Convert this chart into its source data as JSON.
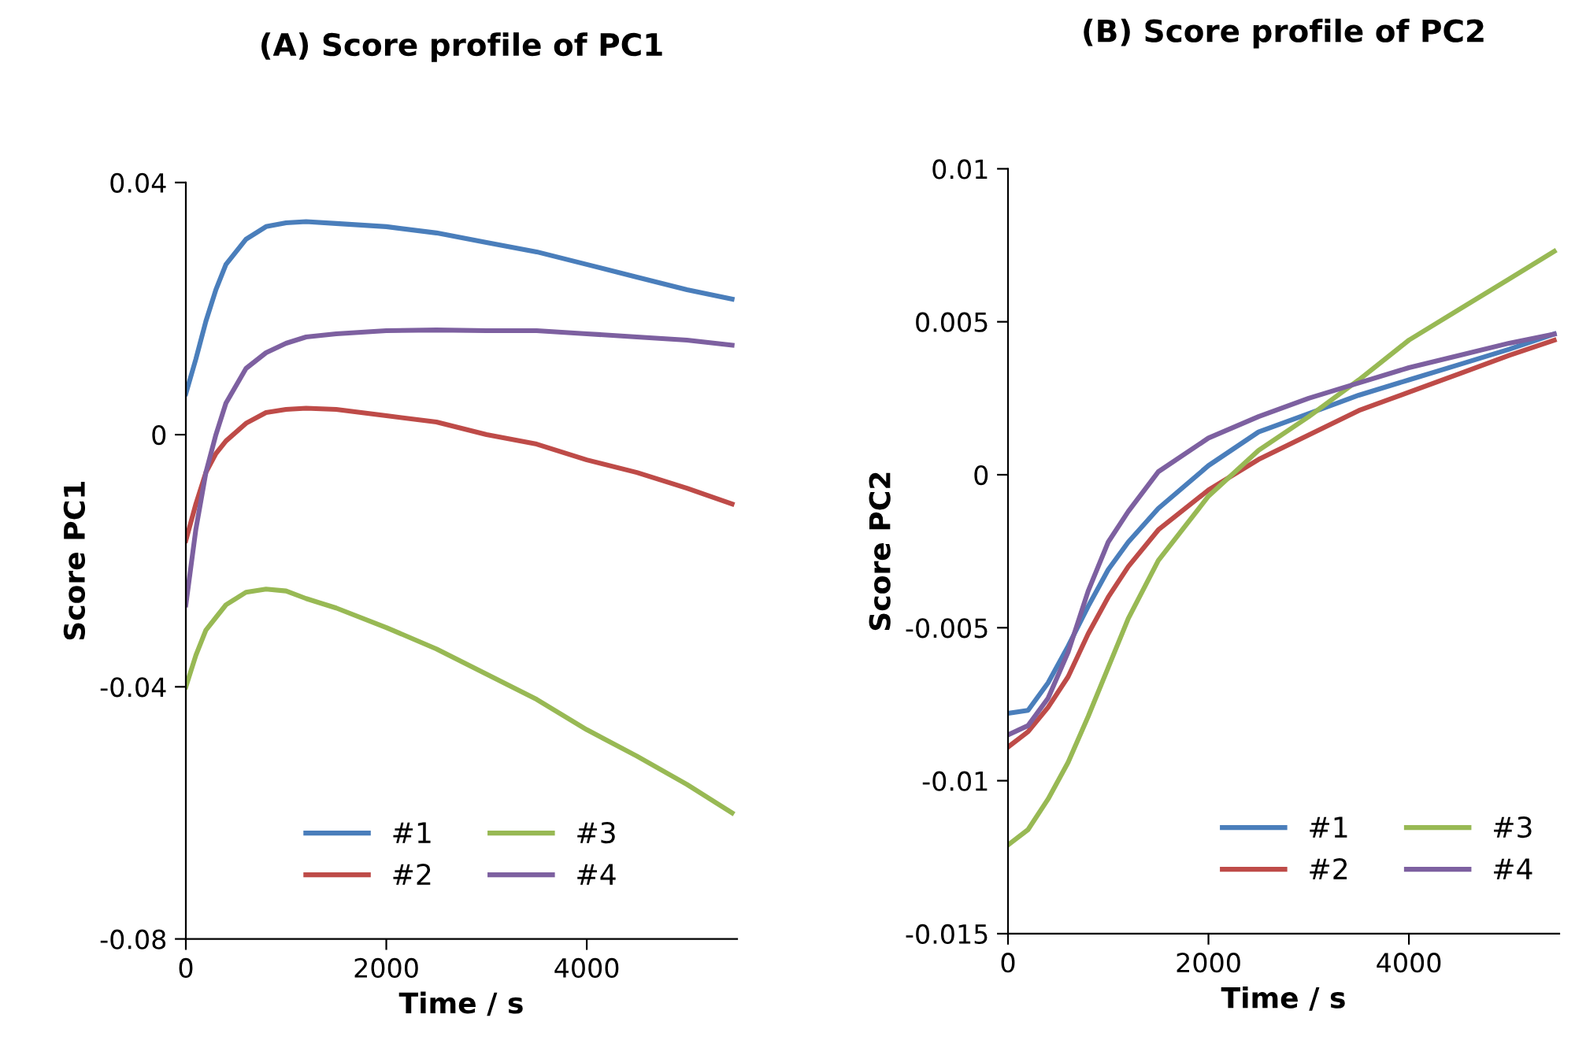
{
  "chart_data": [
    {
      "type": "line",
      "title": "(A) Score profile of PC1",
      "xlabel": "Time / s",
      "ylabel": "Score PC1",
      "x": [
        0,
        100,
        200,
        300,
        400,
        600,
        800,
        1000,
        1200,
        1500,
        2000,
        2500,
        3000,
        3500,
        4000,
        4500,
        5000,
        5450
      ],
      "xlim": [
        0,
        5500
      ],
      "xticks": [
        0,
        2000,
        4000
      ],
      "ylim": [
        -0.08,
        0.04
      ],
      "yticks": [
        -0.08,
        -0.04,
        0,
        0.04
      ],
      "grid": false,
      "legend": "bottom",
      "marker": "none",
      "line_style": "solid",
      "series": [
        {
          "name": "#1",
          "color": "#4a7ebb",
          "values": [
            0.0065,
            0.012,
            0.018,
            0.023,
            0.027,
            0.031,
            0.033,
            0.0336,
            0.0338,
            0.0335,
            0.033,
            0.032,
            0.0305,
            0.029,
            0.027,
            0.025,
            0.023,
            0.0215
          ]
        },
        {
          "name": "#2",
          "color": "#be4b48",
          "values": [
            -0.0168,
            -0.011,
            -0.006,
            -0.003,
            -0.001,
            0.0018,
            0.0035,
            0.004,
            0.0042,
            0.004,
            0.003,
            0.002,
            0.0,
            -0.0015,
            -0.004,
            -0.006,
            -0.0085,
            -0.011
          ]
        },
        {
          "name": "#3",
          "color": "#98b954",
          "values": [
            -0.04,
            -0.035,
            -0.031,
            -0.029,
            -0.027,
            -0.025,
            -0.0245,
            -0.0248,
            -0.026,
            -0.0275,
            -0.0306,
            -0.034,
            -0.038,
            -0.042,
            -0.0468,
            -0.051,
            -0.0555,
            -0.06
          ]
        },
        {
          "name": "#4",
          "color": "#7d60a0",
          "values": [
            -0.027,
            -0.015,
            -0.006,
            0.0,
            0.005,
            0.0105,
            0.013,
            0.0145,
            0.0155,
            0.016,
            0.0165,
            0.0166,
            0.0165,
            0.0165,
            0.016,
            0.0155,
            0.015,
            0.0142
          ]
        }
      ]
    },
    {
      "type": "line",
      "title": "(B) Score profile of PC2",
      "xlabel": "Time / s",
      "ylabel": "Score PC2",
      "x": [
        0,
        200,
        400,
        600,
        800,
        1000,
        1200,
        1500,
        2000,
        2500,
        3000,
        3500,
        4000,
        4500,
        5000,
        5450
      ],
      "xlim": [
        0,
        5500
      ],
      "xticks": [
        0,
        2000,
        4000
      ],
      "ylim": [
        -0.015,
        0.01
      ],
      "yticks": [
        -0.015,
        -0.01,
        -0.005,
        0,
        0.005,
        0.01
      ],
      "grid": false,
      "legend": "bottom right",
      "marker": "none",
      "line_style": "solid",
      "series": [
        {
          "name": "#1",
          "color": "#4a7ebb",
          "values": [
            -0.0078,
            -0.0077,
            -0.0068,
            -0.0056,
            -0.0043,
            -0.0031,
            -0.0022,
            -0.0011,
            0.0003,
            0.0014,
            0.002,
            0.0026,
            0.0031,
            0.0036,
            0.0041,
            0.0046
          ]
        },
        {
          "name": "#2",
          "color": "#be4b48",
          "values": [
            -0.0089,
            -0.0084,
            -0.0076,
            -0.0066,
            -0.0052,
            -0.004,
            -0.003,
            -0.0018,
            -0.0005,
            0.0005,
            0.0013,
            0.0021,
            0.0027,
            0.0033,
            0.0039,
            0.0044
          ]
        },
        {
          "name": "#3",
          "color": "#98b954",
          "values": [
            -0.0121,
            -0.0116,
            -0.0106,
            -0.0094,
            -0.0079,
            -0.0063,
            -0.0047,
            -0.0028,
            -0.0007,
            0.0008,
            0.0019,
            0.0031,
            0.0044,
            0.0054,
            0.0064,
            0.0073
          ]
        },
        {
          "name": "#4",
          "color": "#7d60a0",
          "values": [
            -0.0085,
            -0.0082,
            -0.0073,
            -0.0058,
            -0.0038,
            -0.0022,
            -0.0012,
            0.0001,
            0.0012,
            0.0019,
            0.0025,
            0.003,
            0.0035,
            0.0039,
            0.0043,
            0.0046
          ]
        }
      ]
    }
  ]
}
